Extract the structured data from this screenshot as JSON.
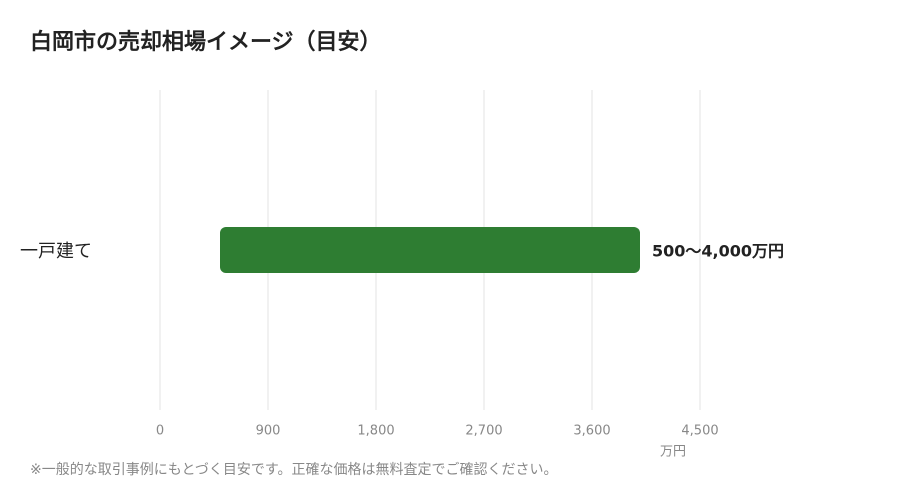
{
  "chart_data": {
    "type": "range-bar",
    "title": "白岡市の売却相場イメージ（目安）",
    "categories": [
      "一戸建て"
    ],
    "low": [
      500
    ],
    "high": [
      4000
    ],
    "value_labels": [
      "500〜4,000万円"
    ],
    "color": "#2e7d32",
    "xlim": [
      0,
      4500
    ],
    "xticks": [
      0,
      900,
      {
        "value": 1800,
        "label": "1,800"
      },
      {
        "value": 2700,
        "label": "2,700"
      },
      {
        "value": 3600,
        "label": "3,600"
      },
      {
        "value": 4500,
        "label": "4,500"
      }
    ],
    "xlabel": "万円",
    "grid": true,
    "note": "※一般的な取引事例にもとづく目安です。正確な価格は無料査定でご確認ください。"
  }
}
